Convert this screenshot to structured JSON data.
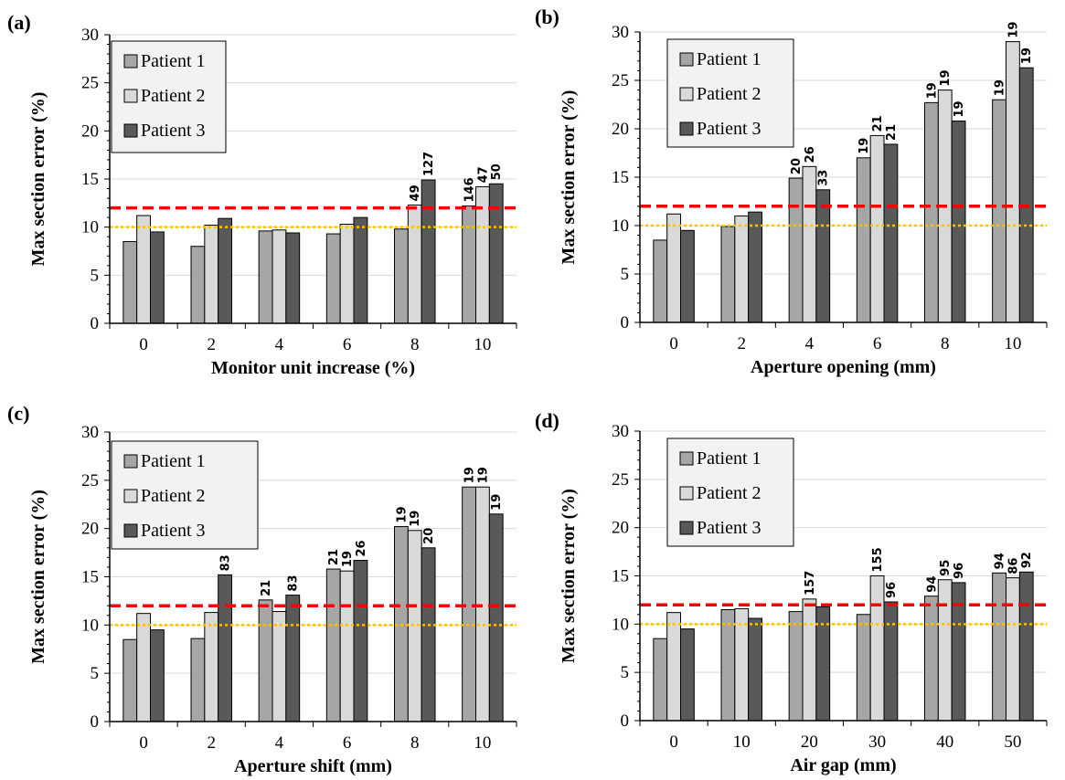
{
  "colors": {
    "series": [
      "#a6a6a6",
      "#d9d9d9",
      "#595959"
    ],
    "threshold_red": "#ff0000",
    "threshold_orange": "#ffc000",
    "grid": "#d9d9d9"
  },
  "chart_data": [
    {
      "panel_label": "(a)",
      "type": "bar",
      "xlabel": "Monitor unit increase (%)",
      "ylabel": "Max  section error (%)",
      "ylim": [
        0,
        30
      ],
      "yticks": [
        "0",
        "5",
        "10",
        "15",
        "20",
        "25",
        "30"
      ],
      "categories": [
        "0",
        "2",
        "4",
        "6",
        "8",
        "10"
      ],
      "grid": true,
      "legend_position": "top-left",
      "thresholds": [
        12,
        10
      ],
      "series": [
        {
          "name": "Patient 1",
          "values": [
            8.5,
            8.0,
            9.6,
            9.3,
            9.8,
            12.2
          ],
          "labels": [
            "",
            "",
            "",
            "",
            "",
            "146"
          ]
        },
        {
          "name": "Patient 2",
          "values": [
            11.2,
            10.2,
            9.7,
            10.3,
            12.3,
            14.2
          ],
          "labels": [
            "",
            "",
            "",
            "",
            "49",
            "47"
          ]
        },
        {
          "name": "Patient 3",
          "values": [
            9.5,
            10.9,
            9.4,
            11.0,
            14.9,
            14.5
          ],
          "labels": [
            "",
            "",
            "",
            "",
            "127",
            "50"
          ]
        }
      ]
    },
    {
      "panel_label": "(b)",
      "type": "bar",
      "xlabel": "Aperture opening (mm)",
      "ylabel": "Max  section error (%)",
      "ylim": [
        0,
        30
      ],
      "yticks": [
        "0",
        "5",
        "10",
        "15",
        "20",
        "25",
        "30"
      ],
      "categories": [
        "0",
        "2",
        "4",
        "6",
        "8",
        "10"
      ],
      "grid": true,
      "legend_position": "top-left",
      "thresholds": [
        12,
        10
      ],
      "series": [
        {
          "name": "Patient 1",
          "values": [
            8.5,
            9.9,
            14.9,
            17.0,
            22.7,
            23.0
          ],
          "labels": [
            "",
            "",
            "20",
            "19",
            "19",
            "19"
          ]
        },
        {
          "name": "Patient 2",
          "values": [
            11.2,
            11.0,
            16.1,
            19.3,
            24.0,
            29.0
          ],
          "labels": [
            "",
            "",
            "26",
            "21",
            "19",
            "19"
          ]
        },
        {
          "name": "Patient 3",
          "values": [
            9.5,
            11.4,
            13.7,
            18.4,
            20.8,
            26.3
          ],
          "labels": [
            "",
            "",
            "33",
            "21",
            "19",
            "19"
          ]
        }
      ]
    },
    {
      "panel_label": "(c)",
      "type": "bar",
      "xlabel": "Aperture shift (mm)",
      "ylabel": "Max  section error (%)",
      "ylim": [
        0,
        30
      ],
      "yticks": [
        "0",
        "5",
        "10",
        "15",
        "20",
        "25",
        "30"
      ],
      "categories": [
        "0",
        "2",
        "4",
        "6",
        "8",
        "10"
      ],
      "grid": true,
      "legend_position": "top-left",
      "thresholds": [
        12,
        10
      ],
      "series": [
        {
          "name": "Patient 1",
          "values": [
            8.5,
            8.6,
            12.6,
            15.8,
            20.2,
            24.3
          ],
          "labels": [
            "",
            "",
            "21",
            "21",
            "19",
            "19"
          ]
        },
        {
          "name": "Patient 2",
          "values": [
            11.2,
            11.3,
            11.4,
            15.6,
            19.8,
            24.3
          ],
          "labels": [
            "",
            "",
            "",
            "19",
            "19",
            "19"
          ]
        },
        {
          "name": "Patient 3",
          "values": [
            9.5,
            15.2,
            13.1,
            16.7,
            18.0,
            21.5
          ],
          "labels": [
            "",
            "83",
            "83",
            "26",
            "20",
            "19"
          ]
        }
      ]
    },
    {
      "panel_label": "(d)",
      "type": "bar",
      "xlabel": "Air gap (mm)",
      "ylabel": "Max  section error (%)",
      "ylim": [
        0,
        30
      ],
      "yticks": [
        "0",
        "5",
        "10",
        "15",
        "20",
        "25",
        "30"
      ],
      "categories": [
        "0",
        "10",
        "20",
        "30",
        "40",
        "50"
      ],
      "grid": true,
      "legend_position": "top-left",
      "thresholds": [
        12,
        10
      ],
      "series": [
        {
          "name": "Patient 1",
          "values": [
            8.5,
            11.5,
            11.3,
            11.0,
            12.9,
            15.3
          ],
          "labels": [
            "",
            "",
            "",
            "",
            "94",
            "94"
          ]
        },
        {
          "name": "Patient 2",
          "values": [
            11.2,
            11.6,
            12.6,
            15.0,
            14.6,
            14.8
          ],
          "labels": [
            "",
            "",
            "157",
            "155",
            "95",
            "86"
          ]
        },
        {
          "name": "Patient 3",
          "values": [
            9.5,
            10.6,
            11.8,
            12.3,
            14.3,
            15.4
          ],
          "labels": [
            "",
            "",
            "",
            "96",
            "96",
            "92"
          ]
        }
      ]
    }
  ]
}
